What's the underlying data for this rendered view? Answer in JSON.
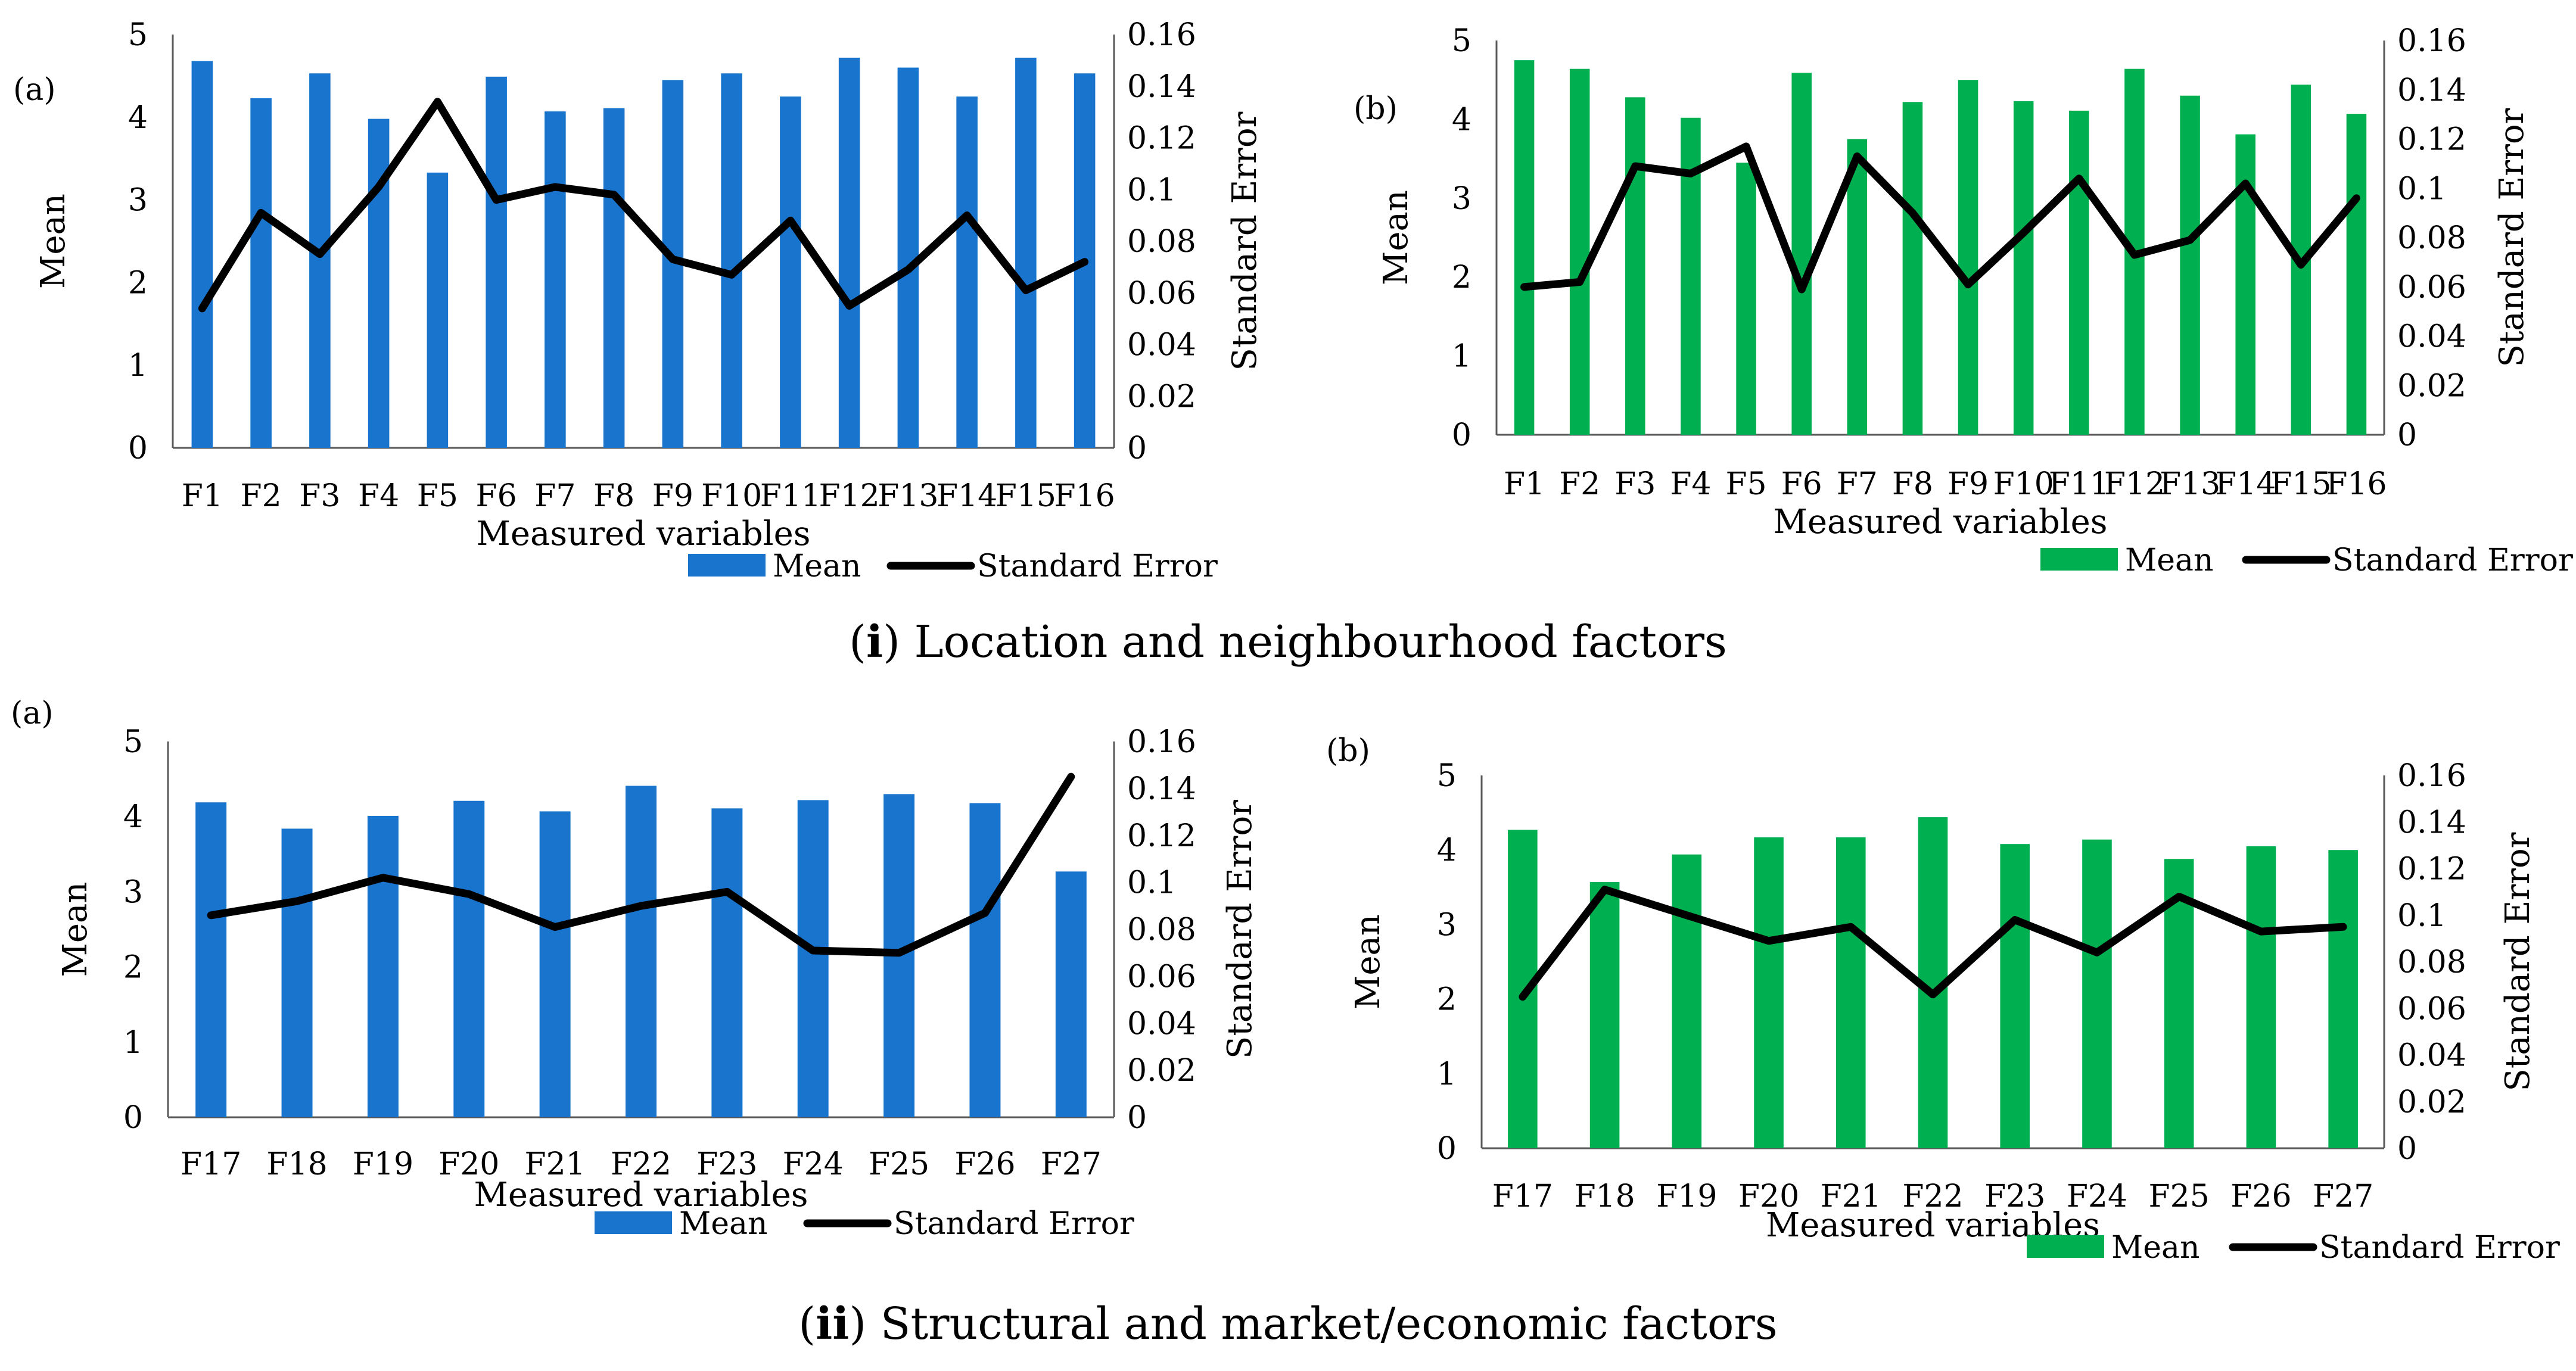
{
  "colors": {
    "blue": "#1874CD",
    "green": "#00B050",
    "line": "#000000"
  },
  "captions": {
    "i": {
      "numeral": "i",
      "text": "Location and neighbourhood factors"
    },
    "ii": {
      "numeral": "ii",
      "text": "Structural and market/economic factors"
    }
  },
  "chart_data": [
    {
      "id": "i-a",
      "panel_label": "(a)",
      "group": "i",
      "type": "bar+line",
      "bar_color": "blue",
      "categories": [
        "F1",
        "F2",
        "F3",
        "F4",
        "F5",
        "F6",
        "F7",
        "F8",
        "F9",
        "F10",
        "F11",
        "F12",
        "F13",
        "F14",
        "F15",
        "F16"
      ],
      "series": [
        {
          "name": "Mean",
          "type": "bar",
          "axis": "left",
          "values": [
            4.68,
            4.23,
            4.53,
            3.98,
            3.33,
            4.49,
            4.07,
            4.11,
            4.45,
            4.53,
            4.25,
            4.72,
            4.6,
            4.25,
            4.72,
            4.53
          ]
        },
        {
          "name": "Standard Error",
          "type": "line",
          "axis": "right",
          "values": [
            0.054,
            0.091,
            0.075,
            0.101,
            0.134,
            0.096,
            0.101,
            0.098,
            0.073,
            0.067,
            0.088,
            0.055,
            0.069,
            0.09,
            0.061,
            0.072
          ]
        }
      ],
      "xlabel": "Measured variables",
      "ylabel_left": "Mean",
      "ylabel_right": "Standard Error",
      "ylim_left": [
        0,
        5
      ],
      "ylim_right": [
        0,
        0.16
      ],
      "yticks_left": [
        "0",
        "1",
        "2",
        "3",
        "4",
        "5"
      ],
      "yticks_right": [
        "0",
        "0.02",
        "0.04",
        "0.06",
        "0.08",
        "0.1",
        "0.12",
        "0.14",
        "0.16"
      ],
      "legend": [
        "Mean",
        "Standard Error"
      ]
    },
    {
      "id": "i-b",
      "panel_label": "(b)",
      "group": "i",
      "type": "bar+line",
      "bar_color": "green",
      "categories": [
        "F1",
        "F2",
        "F3",
        "F4",
        "F5",
        "F6",
        "F7",
        "F8",
        "F9",
        "F10",
        "F11",
        "F12",
        "F13",
        "F14",
        "F15",
        "F16"
      ],
      "series": [
        {
          "name": "Mean",
          "type": "bar",
          "axis": "left",
          "values": [
            4.75,
            4.64,
            4.28,
            4.02,
            3.45,
            4.59,
            3.75,
            4.22,
            4.5,
            4.23,
            4.11,
            4.64,
            4.3,
            3.81,
            4.44,
            4.07
          ]
        },
        {
          "name": "Standard Error",
          "type": "line",
          "axis": "right",
          "values": [
            0.06,
            0.062,
            0.109,
            0.106,
            0.117,
            0.059,
            0.113,
            0.09,
            0.061,
            0.082,
            0.104,
            0.073,
            0.079,
            0.102,
            0.069,
            0.096
          ]
        }
      ],
      "xlabel": "Measured variables",
      "ylabel_left": "Mean",
      "ylabel_right": "Standard Error",
      "ylim_left": [
        0,
        5
      ],
      "ylim_right": [
        0,
        0.16
      ],
      "yticks_left": [
        "0",
        "1",
        "2",
        "3",
        "4",
        "5"
      ],
      "yticks_right": [
        "0",
        "0.02",
        "0.04",
        "0.06",
        "0.08",
        "0.1",
        "0.12",
        "0.14",
        "0.16"
      ],
      "legend": [
        "Mean",
        "Standard Error"
      ]
    },
    {
      "id": "ii-a",
      "panel_label": "(a)",
      "group": "ii",
      "type": "bar+line",
      "bar_color": "blue",
      "categories": [
        "F17",
        "F18",
        "F19",
        "F20",
        "F21",
        "F22",
        "F23",
        "F24",
        "F25",
        "F26",
        "F27"
      ],
      "series": [
        {
          "name": "Mean",
          "type": "bar",
          "axis": "left",
          "values": [
            4.19,
            3.84,
            4.01,
            4.21,
            4.07,
            4.41,
            4.11,
            4.22,
            4.3,
            4.18,
            3.27
          ]
        },
        {
          "name": "Standard Error",
          "type": "line",
          "axis": "right",
          "values": [
            0.086,
            0.092,
            0.102,
            0.095,
            0.081,
            0.09,
            0.096,
            0.071,
            0.07,
            0.087,
            0.145
          ]
        }
      ],
      "xlabel": "Measured variables",
      "ylabel_left": "Mean",
      "ylabel_right": "Standard Error",
      "ylim_left": [
        0,
        5
      ],
      "ylim_right": [
        0,
        0.16
      ],
      "yticks_left": [
        "0",
        "1",
        "2",
        "3",
        "4",
        "5"
      ],
      "yticks_right": [
        "0",
        "0.02",
        "0.04",
        "0.06",
        "0.08",
        "0.1",
        "0.12",
        "0.14",
        "0.16"
      ],
      "legend": [
        "Mean",
        "Standard Error"
      ]
    },
    {
      "id": "ii-b",
      "panel_label": "(b)",
      "group": "ii",
      "type": "bar+line",
      "bar_color": "green",
      "categories": [
        "F17",
        "F18",
        "F19",
        "F20",
        "F21",
        "F22",
        "F23",
        "F24",
        "F25",
        "F26",
        "F27"
      ],
      "series": [
        {
          "name": "Mean",
          "type": "bar",
          "axis": "left",
          "values": [
            4.27,
            3.57,
            3.94,
            4.17,
            4.17,
            4.44,
            4.08,
            4.14,
            3.88,
            4.05,
            4.0
          ]
        },
        {
          "name": "Standard Error",
          "type": "line",
          "axis": "right",
          "values": [
            0.065,
            0.111,
            0.1,
            0.089,
            0.095,
            0.066,
            0.098,
            0.084,
            0.108,
            0.093,
            0.095
          ]
        }
      ],
      "xlabel": "Measured variables",
      "ylabel_left": "Mean",
      "ylabel_right": "Standard Error",
      "ylim_left": [
        0,
        5
      ],
      "ylim_right": [
        0,
        0.16
      ],
      "yticks_left": [
        "0",
        "1",
        "2",
        "3",
        "4",
        "5"
      ],
      "yticks_right": [
        "0",
        "0.02",
        "0.04",
        "0.06",
        "0.08",
        "0.1",
        "0.12",
        "0.14",
        "0.16"
      ],
      "legend": [
        "Mean",
        "Standard Error"
      ]
    }
  ]
}
